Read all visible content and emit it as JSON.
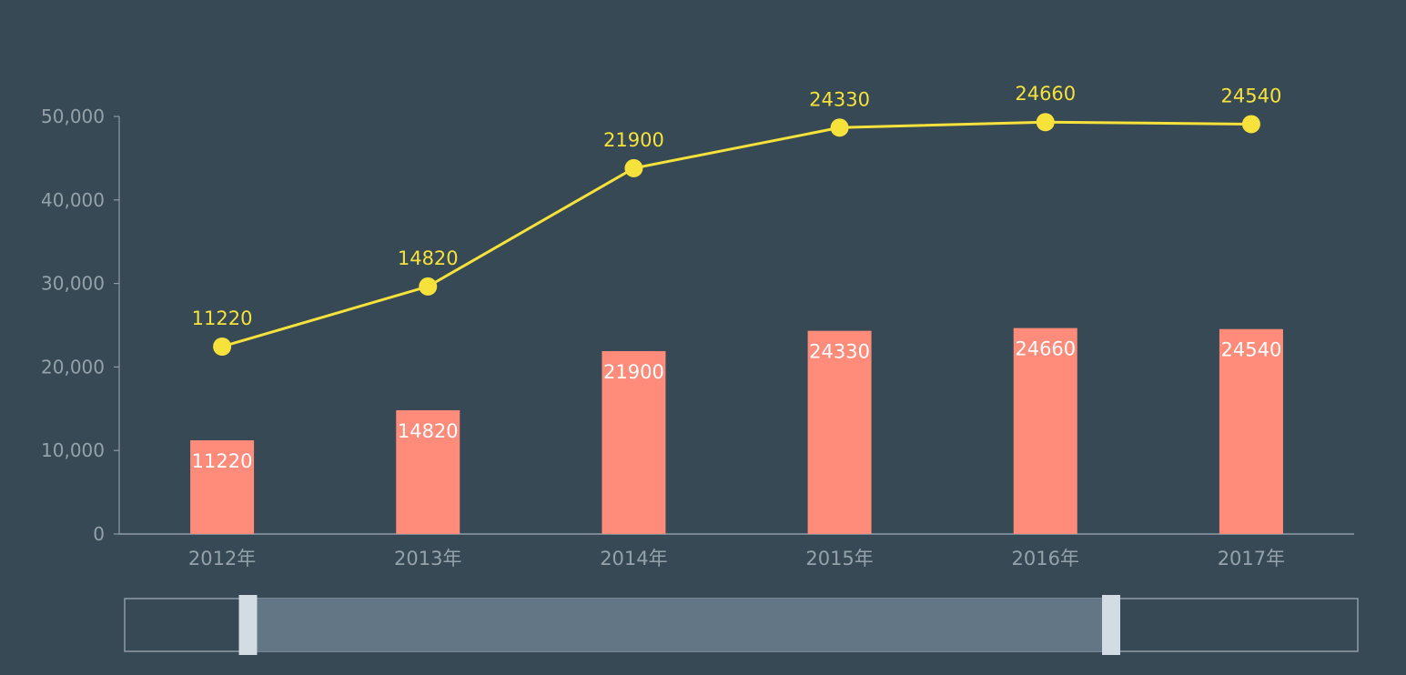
{
  "chart_data": {
    "type": "bar+line",
    "categories": [
      "2012年",
      "2013年",
      "2014年",
      "2015年",
      "2016年",
      "2017年"
    ],
    "series": [
      {
        "type": "bar",
        "values": [
          11220,
          14820,
          21900,
          24330,
          24660,
          24540
        ],
        "labels": [
          "11220",
          "14820",
          "21900",
          "24330",
          "24660",
          "24540"
        ]
      },
      {
        "type": "line",
        "values": [
          11220,
          14820,
          21900,
          24330,
          24660,
          24540
        ],
        "labels": [
          "11220",
          "14820",
          "21900",
          "24330",
          "24660",
          "24540"
        ]
      }
    ],
    "y_ticks": [
      0,
      10000,
      20000,
      30000,
      40000,
      50000
    ],
    "y_tick_labels": [
      "0",
      "10,000",
      "20,000",
      "30,000",
      "40,000",
      "50,000"
    ],
    "ylim": [
      0,
      50000
    ],
    "title": "",
    "xlabel": "",
    "ylabel": "",
    "grid": false,
    "data_zoom": {
      "start_fraction": 0.1,
      "end_fraction": 0.8
    },
    "colors": {
      "background": "#364955",
      "bar": "#ff8b7a",
      "bar_label": "#ffffff",
      "line": "#f7e23c",
      "line_label": "#f7e23c",
      "axis": "#8e9ca5",
      "axis_label": "#95a2aa",
      "zoom_border": "#8e9ca5",
      "zoom_fill": "#637685",
      "zoom_handle": "#d3dce2"
    }
  }
}
